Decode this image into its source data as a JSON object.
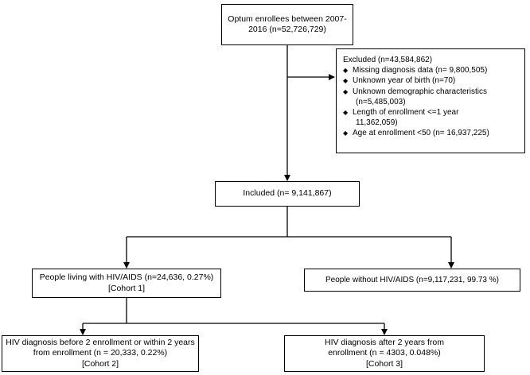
{
  "flowchart": {
    "enrollees": {
      "line1": "Optum enrollees between 2007-",
      "line2": "2016 (n=52,726,729)"
    },
    "excluded": {
      "heading": "Excluded (n=43,584,862)",
      "items": [
        {
          "text": "Missing diagnosis data (n= 9,800,505)",
          "cont": ""
        },
        {
          "text": "Unknown year of birth (n=70)",
          "cont": ""
        },
        {
          "text": "Unknown demographic characteristics",
          "cont": "(n=5,485,003)"
        },
        {
          "text": "Length of enrollment <=1 year",
          "cont": "11,362,059)"
        },
        {
          "text": "Age at enrollment <50 (n= 16,937,225)",
          "cont": ""
        }
      ]
    },
    "included": {
      "text": "Included (n= 9,141,867)"
    },
    "hiv": {
      "line1": "People living with HIV/AIDS (n=24,636, 0.27%)",
      "line2": "[Cohort 1]"
    },
    "no_hiv": {
      "text": "People without HIV/AIDS (n=9,117,231, 99.73 %)"
    },
    "cohort2": {
      "line1": "HIV diagnosis before 2 enrollment or within 2 years",
      "line2": "from enrollment (n = 20,333, 0.22%)",
      "line3": "[Cohort 2]"
    },
    "cohort3": {
      "line1": "HIV diagnosis after 2 years from",
      "line2": "enrollment (n = 4303, 0.048%)",
      "line3": "[Cohort 3]"
    }
  }
}
